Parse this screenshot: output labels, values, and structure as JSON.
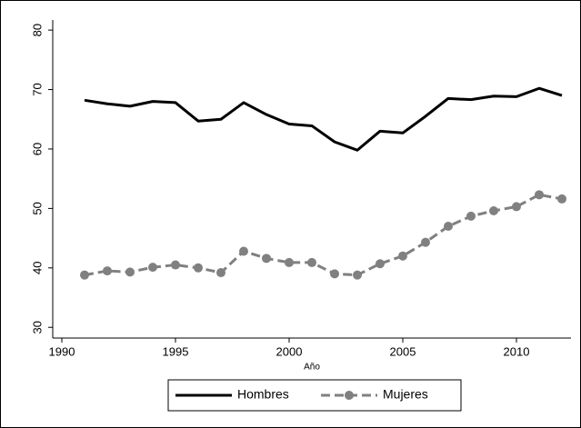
{
  "chart_data": {
    "type": "line",
    "x_label": "Año",
    "x": [
      1991,
      1992,
      1993,
      1994,
      1995,
      1996,
      1997,
      1998,
      1999,
      2000,
      2001,
      2002,
      2003,
      2004,
      2005,
      2006,
      2007,
      2008,
      2009,
      2010,
      2011,
      2012
    ],
    "series": [
      {
        "name": "Hombres",
        "color": "#000000",
        "marker": false,
        "dashed": false,
        "values": [
          68.2,
          67.6,
          67.2,
          68.0,
          67.8,
          64.7,
          65.0,
          67.8,
          65.8,
          64.2,
          63.9,
          61.2,
          59.8,
          63.0,
          62.7,
          65.5,
          68.5,
          68.3,
          68.9,
          68.8,
          70.2,
          69.0
        ]
      },
      {
        "name": "Mujeres",
        "color": "#808080",
        "marker": true,
        "dashed": true,
        "values": [
          38.8,
          39.5,
          39.3,
          40.1,
          40.5,
          40.0,
          39.2,
          42.8,
          41.6,
          40.9,
          40.9,
          39.0,
          38.8,
          40.7,
          42.0,
          44.3,
          47.0,
          48.7,
          49.6,
          50.3,
          52.3,
          51.6
        ]
      }
    ],
    "xlim": [
      1989.6,
      2012.4
    ],
    "xticks": [
      1990,
      1995,
      2000,
      2005,
      2010
    ],
    "ylim": [
      28.2,
      81.7
    ],
    "yticks": [
      30,
      40,
      50,
      60,
      70,
      80
    ],
    "legend": "bottom"
  }
}
